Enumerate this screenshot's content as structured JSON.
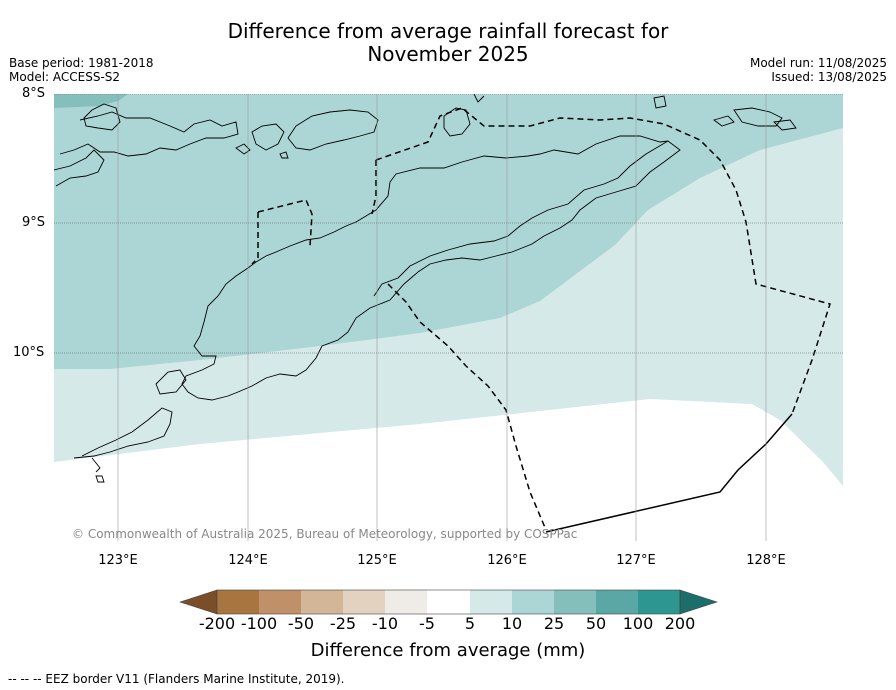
{
  "title": {
    "line1": "Difference from average rainfall forecast for",
    "line2": "November 2025"
  },
  "meta": {
    "base_period": "Base period: 1981-2018",
    "model": "Model: ACCESS-S2",
    "model_run": "Model run: 11/08/2025",
    "issued": "Issued: 13/08/2025"
  },
  "latitude_labels": [
    "8°S",
    "9°S",
    "10°S"
  ],
  "longitude_labels": [
    "123°E",
    "124°E",
    "125°E",
    "126°E",
    "127°E",
    "128°E"
  ],
  "copyright": "© Commonwealth of Australia 2025, Bureau of Meteorology, supported by COSPPac",
  "colorbar": {
    "title": "Difference from average (mm)",
    "labels": [
      "-200",
      "-100",
      "-50",
      "-25",
      "-10",
      "-5",
      "5",
      "10",
      "25",
      "50",
      "100",
      "200"
    ],
    "colors": [
      "#7a4e28",
      "#a8743f",
      "#c09068",
      "#d3b597",
      "#e3d2c0",
      "#efebe7",
      "#ffffff",
      "#d5e9e8",
      "#acd6d5",
      "#84bfbc",
      "#5aa8a6",
      "#2e9691",
      "#1b6e69"
    ]
  },
  "legend_note": "--  --  -- EEZ border V11 (Flanders Marine Institute, 2019)."
}
